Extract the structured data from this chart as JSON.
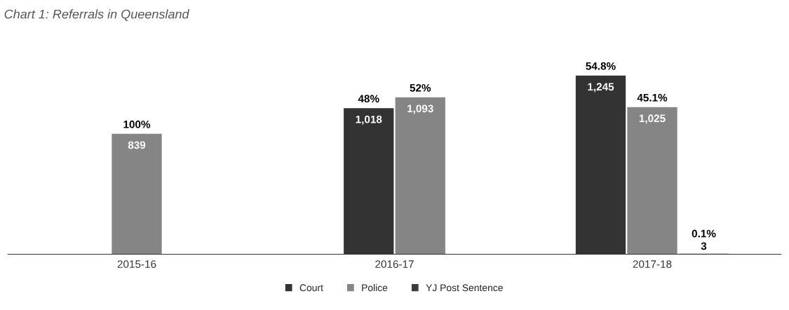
{
  "chart_data": {
    "type": "bar",
    "title": "Chart 1: Referrals in Queensland",
    "categories": [
      "2015-16",
      "2016-17",
      "2017-18"
    ],
    "series": [
      {
        "name": "Court",
        "color": "#333333",
        "values": [
          null,
          1018,
          1245
        ],
        "value_labels": [
          null,
          "1,018",
          "1,245"
        ]
      },
      {
        "name": "Police",
        "color": "#858585",
        "values": [
          839,
          1093,
          1025
        ],
        "value_labels": [
          "839",
          "1,093",
          "1,025"
        ]
      },
      {
        "name": "YJ Post Sentence",
        "color": "#3c3c3c",
        "values": [
          null,
          null,
          3
        ],
        "value_labels": [
          null,
          null,
          "3"
        ]
      }
    ],
    "annotations": [
      "100%",
      "48%",
      "52%",
      "54.8%",
      "45.1%",
      "0.1%"
    ],
    "grid": false,
    "legend": "bottom"
  }
}
